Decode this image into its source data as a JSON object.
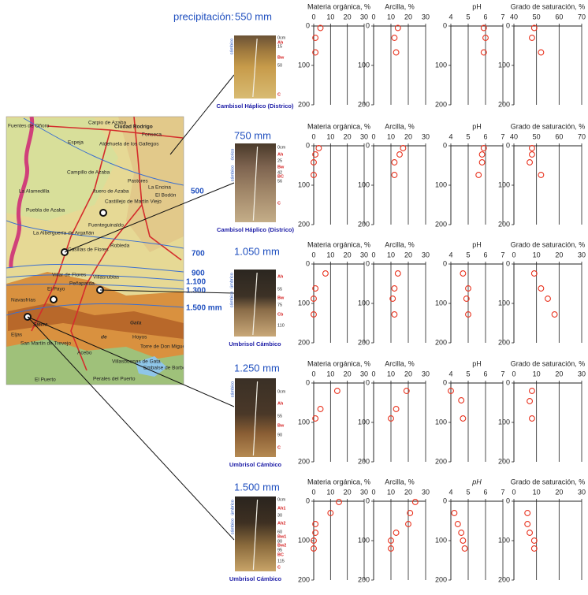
{
  "precipitation_label": "precipitación:",
  "map": {
    "places": [
      "Fuentes de Oñoro",
      "Carpio de Azaba",
      "Ciudad Rodrigo",
      "Fonseca",
      "Espeja",
      "Aldehuela de los Gallegos",
      "Campillo de Azaba",
      "Ituero de Azaba",
      "La Alamedilla",
      "La Encina",
      "El Bodón",
      "Puebla de Azaba",
      "Castillejo de Martín Viejo",
      "Pastores",
      "La Alberguería de Argañán",
      "Fuenteguinaldo",
      "Robleda",
      "Casillas de Flores",
      "Villar de Flores",
      "Peñaparda",
      "Villasrubias",
      "El Payo",
      "Navasfrías",
      "Sierra",
      "de",
      "Gata",
      "Eljas",
      "San Martín de Trevejo",
      "Acebo",
      "Hoyos",
      "Torre de Don Miguel",
      "Villasbuenas de Gata",
      "Embalse de Borbollón",
      "Perales del Puerto",
      "El Puerto"
    ],
    "isohyets": [
      "500",
      "700",
      "900",
      "1.100",
      "1.300",
      "1.500 mm"
    ]
  },
  "profiles": [
    {
      "precipitation": "550 mm",
      "name": "Cambisol Háplico (Districo)",
      "diagnostic": [
        "cámbico"
      ],
      "horizons": [
        "0cm",
        "Ah",
        "15",
        "Bw",
        "50",
        "C"
      ]
    },
    {
      "precipitation": "750 mm",
      "name": "Cambisol Háplico (Districo)",
      "diagnostic": [
        "ócrico",
        "cámbico"
      ],
      "horizons": [
        "0cm",
        "Ah",
        "25",
        "Bw",
        "42",
        "BC",
        "56",
        "C"
      ]
    },
    {
      "precipitation": "1.050 mm",
      "name": "Umbrisol Cámbico",
      "diagnostic": [
        "úmbrico",
        "cámbico"
      ],
      "horizons": [
        "Ah",
        "55",
        "Bw",
        "75",
        "Cb",
        "110"
      ]
    },
    {
      "precipitation": "1.250 mm",
      "name": "Umbrisol Cámbico",
      "diagnostic": [
        "cámbico"
      ],
      "horizons": [
        "0cm",
        "Ah",
        "55",
        "Bw",
        "90",
        "C"
      ]
    },
    {
      "precipitation": "1.500 mm",
      "name": "Umbrisol Cámbico",
      "diagnostic": [
        "úmbrico",
        "cámbico"
      ],
      "horizons": [
        "0cm",
        "Ah1",
        "30",
        "Ah2",
        "60",
        "Bw1",
        "80",
        "Bw2",
        "95",
        "BC",
        "115",
        "C"
      ]
    }
  ],
  "chart_data": [
    {
      "type": "scatter",
      "title": "Materia orgánica, %",
      "x": [
        4,
        1,
        1
      ],
      "y": [
        5,
        30,
        67
      ],
      "xlim": [
        0,
        30
      ],
      "xticks": [
        0,
        10,
        20,
        30
      ],
      "ylim": [
        0,
        200
      ],
      "yticks": [
        0,
        100,
        200
      ],
      "invert_y": true,
      "color": "#e8321e"
    },
    {
      "type": "scatter",
      "title": "Arcilla, %",
      "x": [
        14,
        12,
        13
      ],
      "y": [
        5,
        30,
        67
      ],
      "xlim": [
        0,
        30
      ],
      "xticks": [
        0,
        10,
        20,
        30
      ],
      "ylim": [
        0,
        200
      ],
      "yticks": [
        0,
        100,
        200
      ],
      "invert_y": true,
      "color": "#e8321e"
    },
    {
      "type": "scatter",
      "title": "pH",
      "x": [
        5.9,
        6.0,
        5.9
      ],
      "y": [
        5,
        30,
        67
      ],
      "xlim": [
        4,
        7
      ],
      "xticks": [
        4,
        5,
        6,
        7
      ],
      "ylim": [
        0,
        200
      ],
      "yticks": [
        0,
        100,
        200
      ],
      "invert_y": true,
      "color": "#e8321e"
    },
    {
      "type": "scatter",
      "title": "Grado de saturación, %",
      "x": [
        49,
        48,
        52
      ],
      "y": [
        5,
        30,
        67
      ],
      "xlim": [
        40,
        70
      ],
      "xticks": [
        40,
        50,
        60,
        70
      ],
      "ylim": [
        0,
        200
      ],
      "yticks": [
        0,
        100,
        200
      ],
      "invert_y": true,
      "color": "#e8321e"
    },
    {
      "type": "scatter",
      "title": "Materia orgánica, %",
      "x": [
        3,
        1,
        0,
        0
      ],
      "y": [
        6,
        22,
        42,
        74
      ],
      "xlim": [
        0,
        30
      ],
      "xticks": [
        0,
        10,
        20,
        30
      ],
      "ylim": [
        0,
        200
      ],
      "yticks": [
        0,
        100,
        200
      ],
      "invert_y": true,
      "color": "#e8321e"
    },
    {
      "type": "scatter",
      "title": "Arcilla, %",
      "x": [
        17,
        15,
        12,
        12
      ],
      "y": [
        6,
        22,
        42,
        74
      ],
      "xlim": [
        0,
        30
      ],
      "xticks": [
        0,
        10,
        20,
        30
      ],
      "ylim": [
        0,
        200
      ],
      "yticks": [
        0,
        100,
        200
      ],
      "invert_y": true,
      "color": "#e8321e"
    },
    {
      "type": "scatter",
      "title": "pH",
      "x": [
        5.9,
        5.8,
        5.8,
        5.6
      ],
      "y": [
        6,
        22,
        42,
        74
      ],
      "xlim": [
        4,
        7
      ],
      "xticks": [
        4,
        5,
        6,
        7
      ],
      "ylim": [
        0,
        200
      ],
      "yticks": [
        0,
        100,
        200
      ],
      "invert_y": true,
      "color": "#e8321e"
    },
    {
      "type": "scatter",
      "title": "Grado de saturación, %",
      "x": [
        48,
        48,
        47,
        52
      ],
      "y": [
        6,
        22,
        42,
        74
      ],
      "xlim": [
        40,
        70
      ],
      "xticks": [
        40,
        50,
        60,
        70
      ],
      "ylim": [
        0,
        200
      ],
      "yticks": [
        0,
        100,
        200
      ],
      "invert_y": true,
      "color": "#e8321e"
    },
    {
      "type": "scatter",
      "title": "Materia orgánica, %",
      "x": [
        7,
        1,
        0,
        0
      ],
      "y": [
        24,
        62,
        88,
        128
      ],
      "xlim": [
        0,
        30
      ],
      "xticks": [
        0,
        10,
        20,
        30
      ],
      "ylim": [
        0,
        200
      ],
      "yticks": [
        0,
        100,
        200
      ],
      "invert_y": true,
      "color": "#e8321e"
    },
    {
      "type": "scatter",
      "title": "Arcilla, %",
      "x": [
        14,
        12,
        11,
        12
      ],
      "y": [
        24,
        62,
        88,
        128
      ],
      "xlim": [
        0,
        30
      ],
      "xticks": [
        0,
        10,
        20,
        30
      ],
      "ylim": [
        0,
        200
      ],
      "yticks": [
        0,
        100,
        200
      ],
      "invert_y": true,
      "color": "#e8321e"
    },
    {
      "type": "scatter",
      "title": "pH",
      "x": [
        4.7,
        5.0,
        4.9,
        5.0
      ],
      "y": [
        24,
        62,
        88,
        128
      ],
      "xlim": [
        4,
        7
      ],
      "xticks": [
        4,
        5,
        6,
        7
      ],
      "ylim": [
        0,
        200
      ],
      "yticks": [
        0,
        100,
        200
      ],
      "invert_y": true,
      "color": "#e8321e"
    },
    {
      "type": "scatter",
      "title": "Grado de saturación, %",
      "x": [
        9,
        12,
        15,
        18
      ],
      "y": [
        24,
        62,
        88,
        128
      ],
      "xlim": [
        0,
        30
      ],
      "xticks": [
        0,
        10,
        20,
        30
      ],
      "ylim": [
        0,
        200
      ],
      "yticks": [
        0,
        100,
        200
      ],
      "invert_y": true,
      "color": "#e8321e"
    },
    {
      "type": "scatter",
      "title": "Materia orgánica, %",
      "x": [
        14,
        4,
        1
      ],
      "y": [
        20,
        66,
        90
      ],
      "xlim": [
        0,
        30
      ],
      "xticks": [
        0,
        10,
        20,
        30
      ],
      "ylim": [
        0,
        200
      ],
      "yticks": [
        0,
        100,
        200
      ],
      "invert_y": true,
      "color": "#e8321e"
    },
    {
      "type": "scatter",
      "title": "Arcilla, %",
      "x": [
        19,
        13,
        10
      ],
      "y": [
        20,
        66,
        90
      ],
      "xlim": [
        0,
        30
      ],
      "xticks": [
        0,
        10,
        20,
        30
      ],
      "ylim": [
        0,
        200
      ],
      "yticks": [
        0,
        100,
        200
      ],
      "invert_y": true,
      "color": "#e8321e"
    },
    {
      "type": "scatter",
      "title": "pH",
      "x": [
        4.0,
        4.6,
        4.7
      ],
      "y": [
        20,
        44,
        90
      ],
      "xlim": [
        4,
        7
      ],
      "xticks": [
        4,
        5,
        6,
        7
      ],
      "ylim": [
        0,
        200
      ],
      "yticks": [
        0,
        100,
        200
      ],
      "invert_y": true,
      "color": "#e8321e"
    },
    {
      "type": "scatter",
      "title": "Grado de saturación, %",
      "x": [
        8,
        7,
        8
      ],
      "y": [
        20,
        46,
        90
      ],
      "xlim": [
        0,
        30
      ],
      "xticks": [
        0,
        10,
        20,
        30
      ],
      "ylim": [
        0,
        200
      ],
      "yticks": [
        0,
        100,
        200
      ],
      "invert_y": true,
      "color": "#e8321e"
    },
    {
      "type": "scatter",
      "title": "Materia orgánica, %",
      "x": [
        15,
        10,
        1,
        1,
        0,
        0
      ],
      "y": [
        2,
        30,
        58,
        80,
        100,
        120
      ],
      "xlim": [
        0,
        30
      ],
      "xticks": [
        0,
        10,
        20,
        30
      ],
      "ylim": [
        0,
        200
      ],
      "yticks": [
        0,
        100,
        200
      ],
      "invert_y": true,
      "color": "#e8321e"
    },
    {
      "type": "scatter",
      "title": "Arcilla, %",
      "x": [
        24,
        21,
        20,
        13,
        10,
        10
      ],
      "y": [
        2,
        30,
        58,
        80,
        100,
        120
      ],
      "xlim": [
        0,
        30
      ],
      "xticks": [
        0,
        10,
        20,
        30
      ],
      "ylim": [
        0,
        200
      ],
      "yticks": [
        0,
        100,
        200
      ],
      "invert_y": true,
      "color": "#e8321e"
    },
    {
      "type": "scatter",
      "title": "pH",
      "x": [
        4.2,
        4.4,
        4.6,
        4.7,
        4.8
      ],
      "y": [
        30,
        58,
        80,
        100,
        120
      ],
      "xlim": [
        4,
        7
      ],
      "xticks": [
        4,
        5,
        6,
        7
      ],
      "ylim": [
        0,
        200
      ],
      "yticks": [
        0,
        100,
        200
      ],
      "invert_y": true,
      "color": "#e8321e"
    },
    {
      "type": "scatter",
      "title": "Grado de saturación, %",
      "x": [
        6,
        6,
        7,
        9,
        9
      ],
      "y": [
        30,
        58,
        80,
        100,
        120
      ],
      "xlim": [
        0,
        30
      ],
      "xticks": [
        0,
        10,
        20,
        30
      ],
      "ylim": [
        0,
        200
      ],
      "yticks": [
        0,
        100,
        200
      ],
      "invert_y": true,
      "color": "#e8321e"
    }
  ]
}
